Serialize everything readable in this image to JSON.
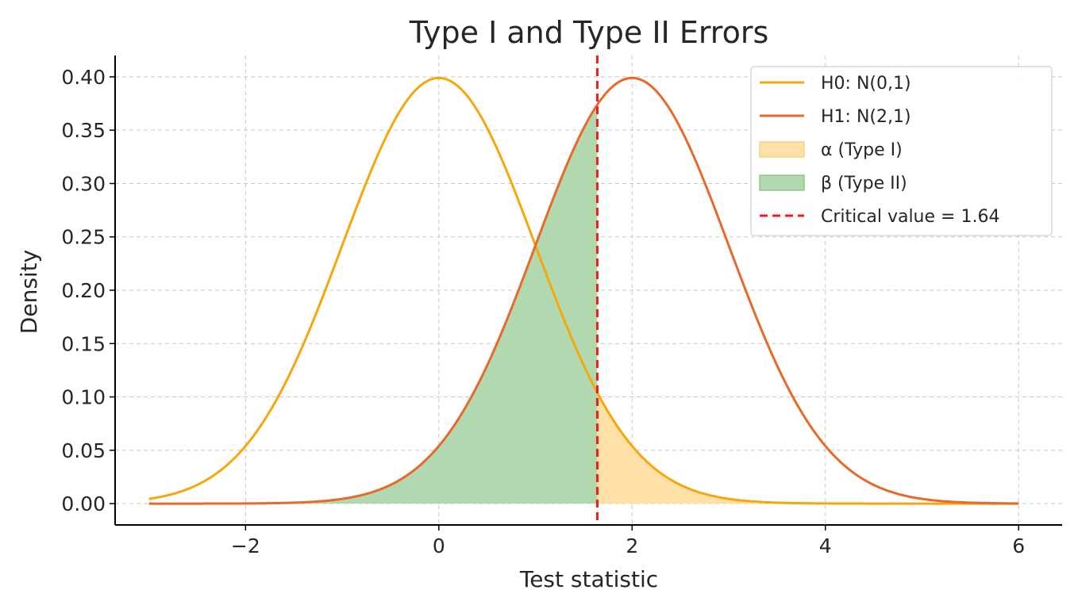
{
  "chart_data": {
    "type": "line",
    "title": "Type I and Type II Errors",
    "xlabel": "Test statistic",
    "ylabel": "Density",
    "xlim": [
      -3.35,
      6.45
    ],
    "ylim": [
      -0.02,
      0.42
    ],
    "x_range": [
      -3,
      6
    ],
    "xticks": [
      -2,
      0,
      2,
      4,
      6
    ],
    "xtick_labels": [
      "−2",
      "0",
      "2",
      "4",
      "6"
    ],
    "yticks": [
      0.0,
      0.05,
      0.1,
      0.15,
      0.2,
      0.25,
      0.3,
      0.35,
      0.4
    ],
    "ytick_labels": [
      "0.00",
      "0.05",
      "0.10",
      "0.15",
      "0.20",
      "0.25",
      "0.30",
      "0.35",
      "0.40"
    ],
    "grid": true,
    "legend_position": "top-right",
    "critical_value": 1.64,
    "series": [
      {
        "name": "H0: N(0,1)",
        "mean": 0,
        "sd": 1,
        "color": "#F5A70E"
      },
      {
        "name": "H1: N(2,1)",
        "mean": 2,
        "sd": 1,
        "color": "#E8692A"
      }
    ],
    "areas": [
      {
        "name": "α (Type I)",
        "under": "H0",
        "from": 1.64,
        "to": 6,
        "color": "#FFE1A8"
      },
      {
        "name": "β (Type II)",
        "under": "H1",
        "from": -3,
        "to": 1.64,
        "color": "#B2D8B0"
      }
    ],
    "critical_line": {
      "name": "Critical value = 1.64",
      "color": "#EE1C1C"
    }
  }
}
